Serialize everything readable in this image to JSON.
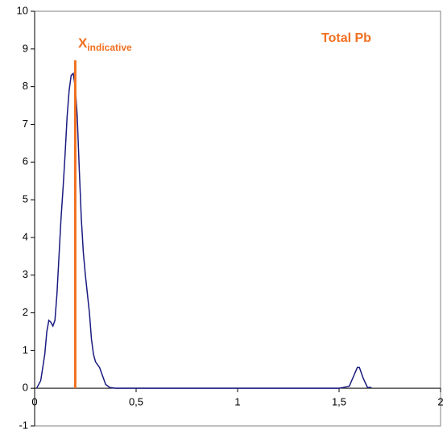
{
  "chart_data": {
    "type": "line",
    "annotation": "Total Pb",
    "marker_label": {
      "main": "X",
      "sub": "indicative"
    },
    "marker": {
      "x": 0.2,
      "ylim": [
        0,
        8.7
      ],
      "color": "#f07020"
    },
    "x": [
      0.01,
      0.03,
      0.05,
      0.06,
      0.07,
      0.08,
      0.09,
      0.1,
      0.11,
      0.12,
      0.13,
      0.14,
      0.15,
      0.16,
      0.17,
      0.18,
      0.19,
      0.2,
      0.21,
      0.22,
      0.23,
      0.24,
      0.25,
      0.26,
      0.27,
      0.28,
      0.29,
      0.3,
      0.32,
      0.33,
      0.35,
      0.37,
      0.4,
      1.5,
      1.55,
      1.57,
      1.59,
      1.6,
      1.62,
      1.64,
      1.66
    ],
    "series": [
      {
        "color": "#1a1a80",
        "values": [
          0,
          0.2,
          0.9,
          1.5,
          1.8,
          1.75,
          1.65,
          1.8,
          2.5,
          3.5,
          4.5,
          5.3,
          6.2,
          7.2,
          7.9,
          8.3,
          8.35,
          8.0,
          7.2,
          5.8,
          4.5,
          3.6,
          3.0,
          2.5,
          2.0,
          1.3,
          0.9,
          0.7,
          0.55,
          0.4,
          0.1,
          0.02,
          0,
          0,
          0.05,
          0.3,
          0.55,
          0.55,
          0.25,
          0.02,
          0.02
        ]
      }
    ],
    "xlim": [
      0,
      2
    ],
    "xticks": [
      0,
      {
        "value": 0.5,
        "label": "0,5"
      },
      1,
      {
        "value": 1.5,
        "label": "1,5"
      },
      2
    ],
    "ylim": [
      -1,
      10
    ],
    "yticks": [
      -1,
      0,
      1,
      2,
      3,
      4,
      5,
      6,
      7,
      8,
      9,
      10
    ]
  }
}
